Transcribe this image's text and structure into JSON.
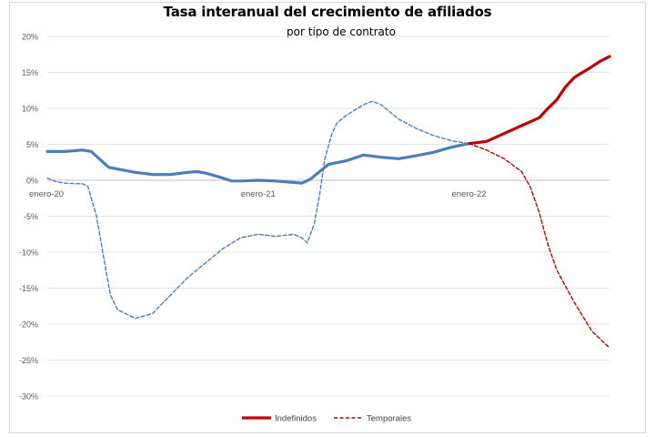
{
  "chart_data": {
    "type": "line",
    "title": "Tasa interanual del crecimiento de afiliados",
    "subtitle": "por tipo de contrato",
    "ylim": [
      -30,
      20
    ],
    "y_ticks": [
      "20%",
      "15%",
      "10%",
      "5%",
      "0%",
      "-5%",
      "-10%",
      "-15%",
      "-20%",
      "-25%",
      "-30%"
    ],
    "x_labels": [
      {
        "label": "enero-20",
        "x": 0
      },
      {
        "label": "enero-21",
        "x": 12
      },
      {
        "label": "enero-22",
        "x": 24
      }
    ],
    "grid": true,
    "legend_position": "bottom",
    "series": [
      {
        "name": "Indefinidos",
        "style": "solid",
        "colors": [
          "#4a7ebb",
          "#c00000"
        ],
        "split_x": 24,
        "points": [
          [
            0,
            4.0
          ],
          [
            1,
            4.0
          ],
          [
            2,
            4.2
          ],
          [
            2.5,
            4.0
          ],
          [
            3.5,
            1.8
          ],
          [
            5,
            1.1
          ],
          [
            6,
            0.8
          ],
          [
            7,
            0.8
          ],
          [
            8,
            1.1
          ],
          [
            8.5,
            1.2
          ],
          [
            9,
            1.0
          ],
          [
            10,
            0.3
          ],
          [
            10.5,
            -0.1
          ],
          [
            11,
            -0.1
          ],
          [
            12,
            0.0
          ],
          [
            13,
            -0.1
          ],
          [
            14,
            -0.3
          ],
          [
            14.5,
            -0.4
          ],
          [
            15,
            0.2
          ],
          [
            16,
            2.2
          ],
          [
            17,
            2.7
          ],
          [
            18,
            3.5
          ],
          [
            19,
            3.2
          ],
          [
            20,
            3.0
          ],
          [
            21,
            3.4
          ],
          [
            22,
            3.9
          ],
          [
            23,
            4.6
          ],
          [
            24,
            5.1
          ],
          [
            25,
            5.4
          ],
          [
            26,
            6.5
          ],
          [
            27,
            7.6
          ],
          [
            28,
            8.7
          ],
          [
            28.5,
            10.0
          ],
          [
            29,
            11.2
          ],
          [
            29.5,
            13.0
          ],
          [
            30,
            14.3
          ],
          [
            31,
            15.8
          ],
          [
            31.5,
            16.6
          ],
          [
            32,
            17.2
          ]
        ]
      },
      {
        "name": "Temporales",
        "style": "dashed",
        "colors": [
          "#4a7ebb",
          "#c00000"
        ],
        "split_x": 24,
        "points": [
          [
            0,
            0.3
          ],
          [
            0.5,
            -0.2
          ],
          [
            1,
            -0.4
          ],
          [
            2,
            -0.5
          ],
          [
            2.3,
            -0.8
          ],
          [
            2.8,
            -5.0
          ],
          [
            3.3,
            -12.0
          ],
          [
            3.6,
            -16.0
          ],
          [
            4,
            -18.0
          ],
          [
            5,
            -19.2
          ],
          [
            6,
            -18.5
          ],
          [
            7,
            -16.0
          ],
          [
            8,
            -13.5
          ],
          [
            9,
            -11.5
          ],
          [
            10,
            -9.5
          ],
          [
            11,
            -8.0
          ],
          [
            12,
            -7.5
          ],
          [
            13,
            -7.8
          ],
          [
            14,
            -7.5
          ],
          [
            14.5,
            -8.0
          ],
          [
            14.8,
            -8.7
          ],
          [
            15.2,
            -6.0
          ],
          [
            15.5,
            -2.0
          ],
          [
            15.8,
            3.0
          ],
          [
            16.2,
            6.5
          ],
          [
            16.5,
            8.0
          ],
          [
            17,
            9.0
          ],
          [
            18,
            10.5
          ],
          [
            18.5,
            11.0
          ],
          [
            19,
            10.5
          ],
          [
            20,
            8.5
          ],
          [
            21,
            7.2
          ],
          [
            22,
            6.2
          ],
          [
            23,
            5.5
          ],
          [
            24,
            5.1
          ],
          [
            25,
            4.2
          ],
          [
            26,
            3.0
          ],
          [
            27,
            1.2
          ],
          [
            27.5,
            -1.0
          ],
          [
            28,
            -4.5
          ],
          [
            28.5,
            -9.0
          ],
          [
            29,
            -12.5
          ],
          [
            30,
            -17.0
          ],
          [
            31,
            -21.0
          ],
          [
            32,
            -23.3
          ]
        ]
      }
    ]
  }
}
